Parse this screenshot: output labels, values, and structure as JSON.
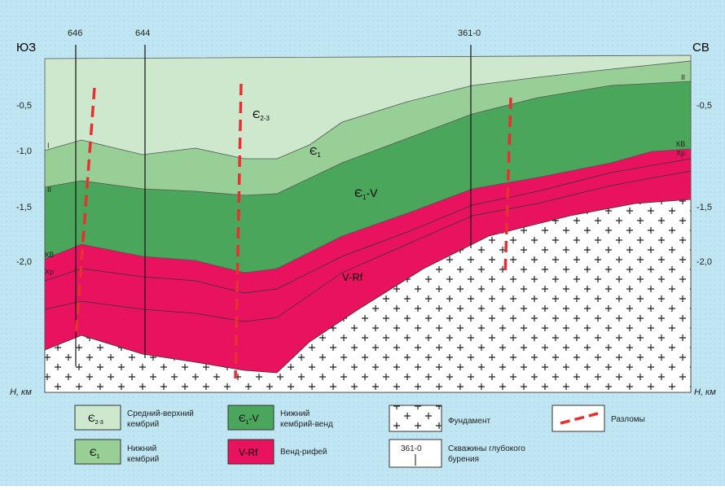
{
  "compass": {
    "left": "ЮЗ",
    "right": "СВ"
  },
  "wells": [
    "646",
    "644",
    "361-0"
  ],
  "depth_axis": {
    "left": [
      "-0,5",
      "-1,0",
      "-1,5",
      "-2,0"
    ],
    "right": [
      "-0,5",
      "-1,5",
      "-2,0"
    ],
    "unit": "H, км"
  },
  "layers": [
    {
      "symbol": "Є",
      "sub": "2-3"
    },
    {
      "symbol": "Є",
      "sub": "1"
    },
    {
      "symbol": "Є",
      "sub": "1",
      "rest": "-V"
    },
    {
      "symbol": "V-Rf"
    }
  ],
  "horizons": {
    "left": [
      "I",
      "II",
      "КВ",
      "Хр"
    ],
    "right": [
      "II",
      "КВ",
      "Хр"
    ]
  },
  "legend": [
    {
      "label": "Средний-верхний кембрий"
    },
    {
      "label": "Нижний кембрий"
    },
    {
      "label": "Нижний кембрий-венд"
    },
    {
      "label": "Венд-рифей"
    },
    {
      "label": "Фундамент"
    },
    {
      "label": "Скважины глубокого бурения",
      "symbol": "361-0"
    },
    {
      "label": "Разломы"
    }
  ]
}
